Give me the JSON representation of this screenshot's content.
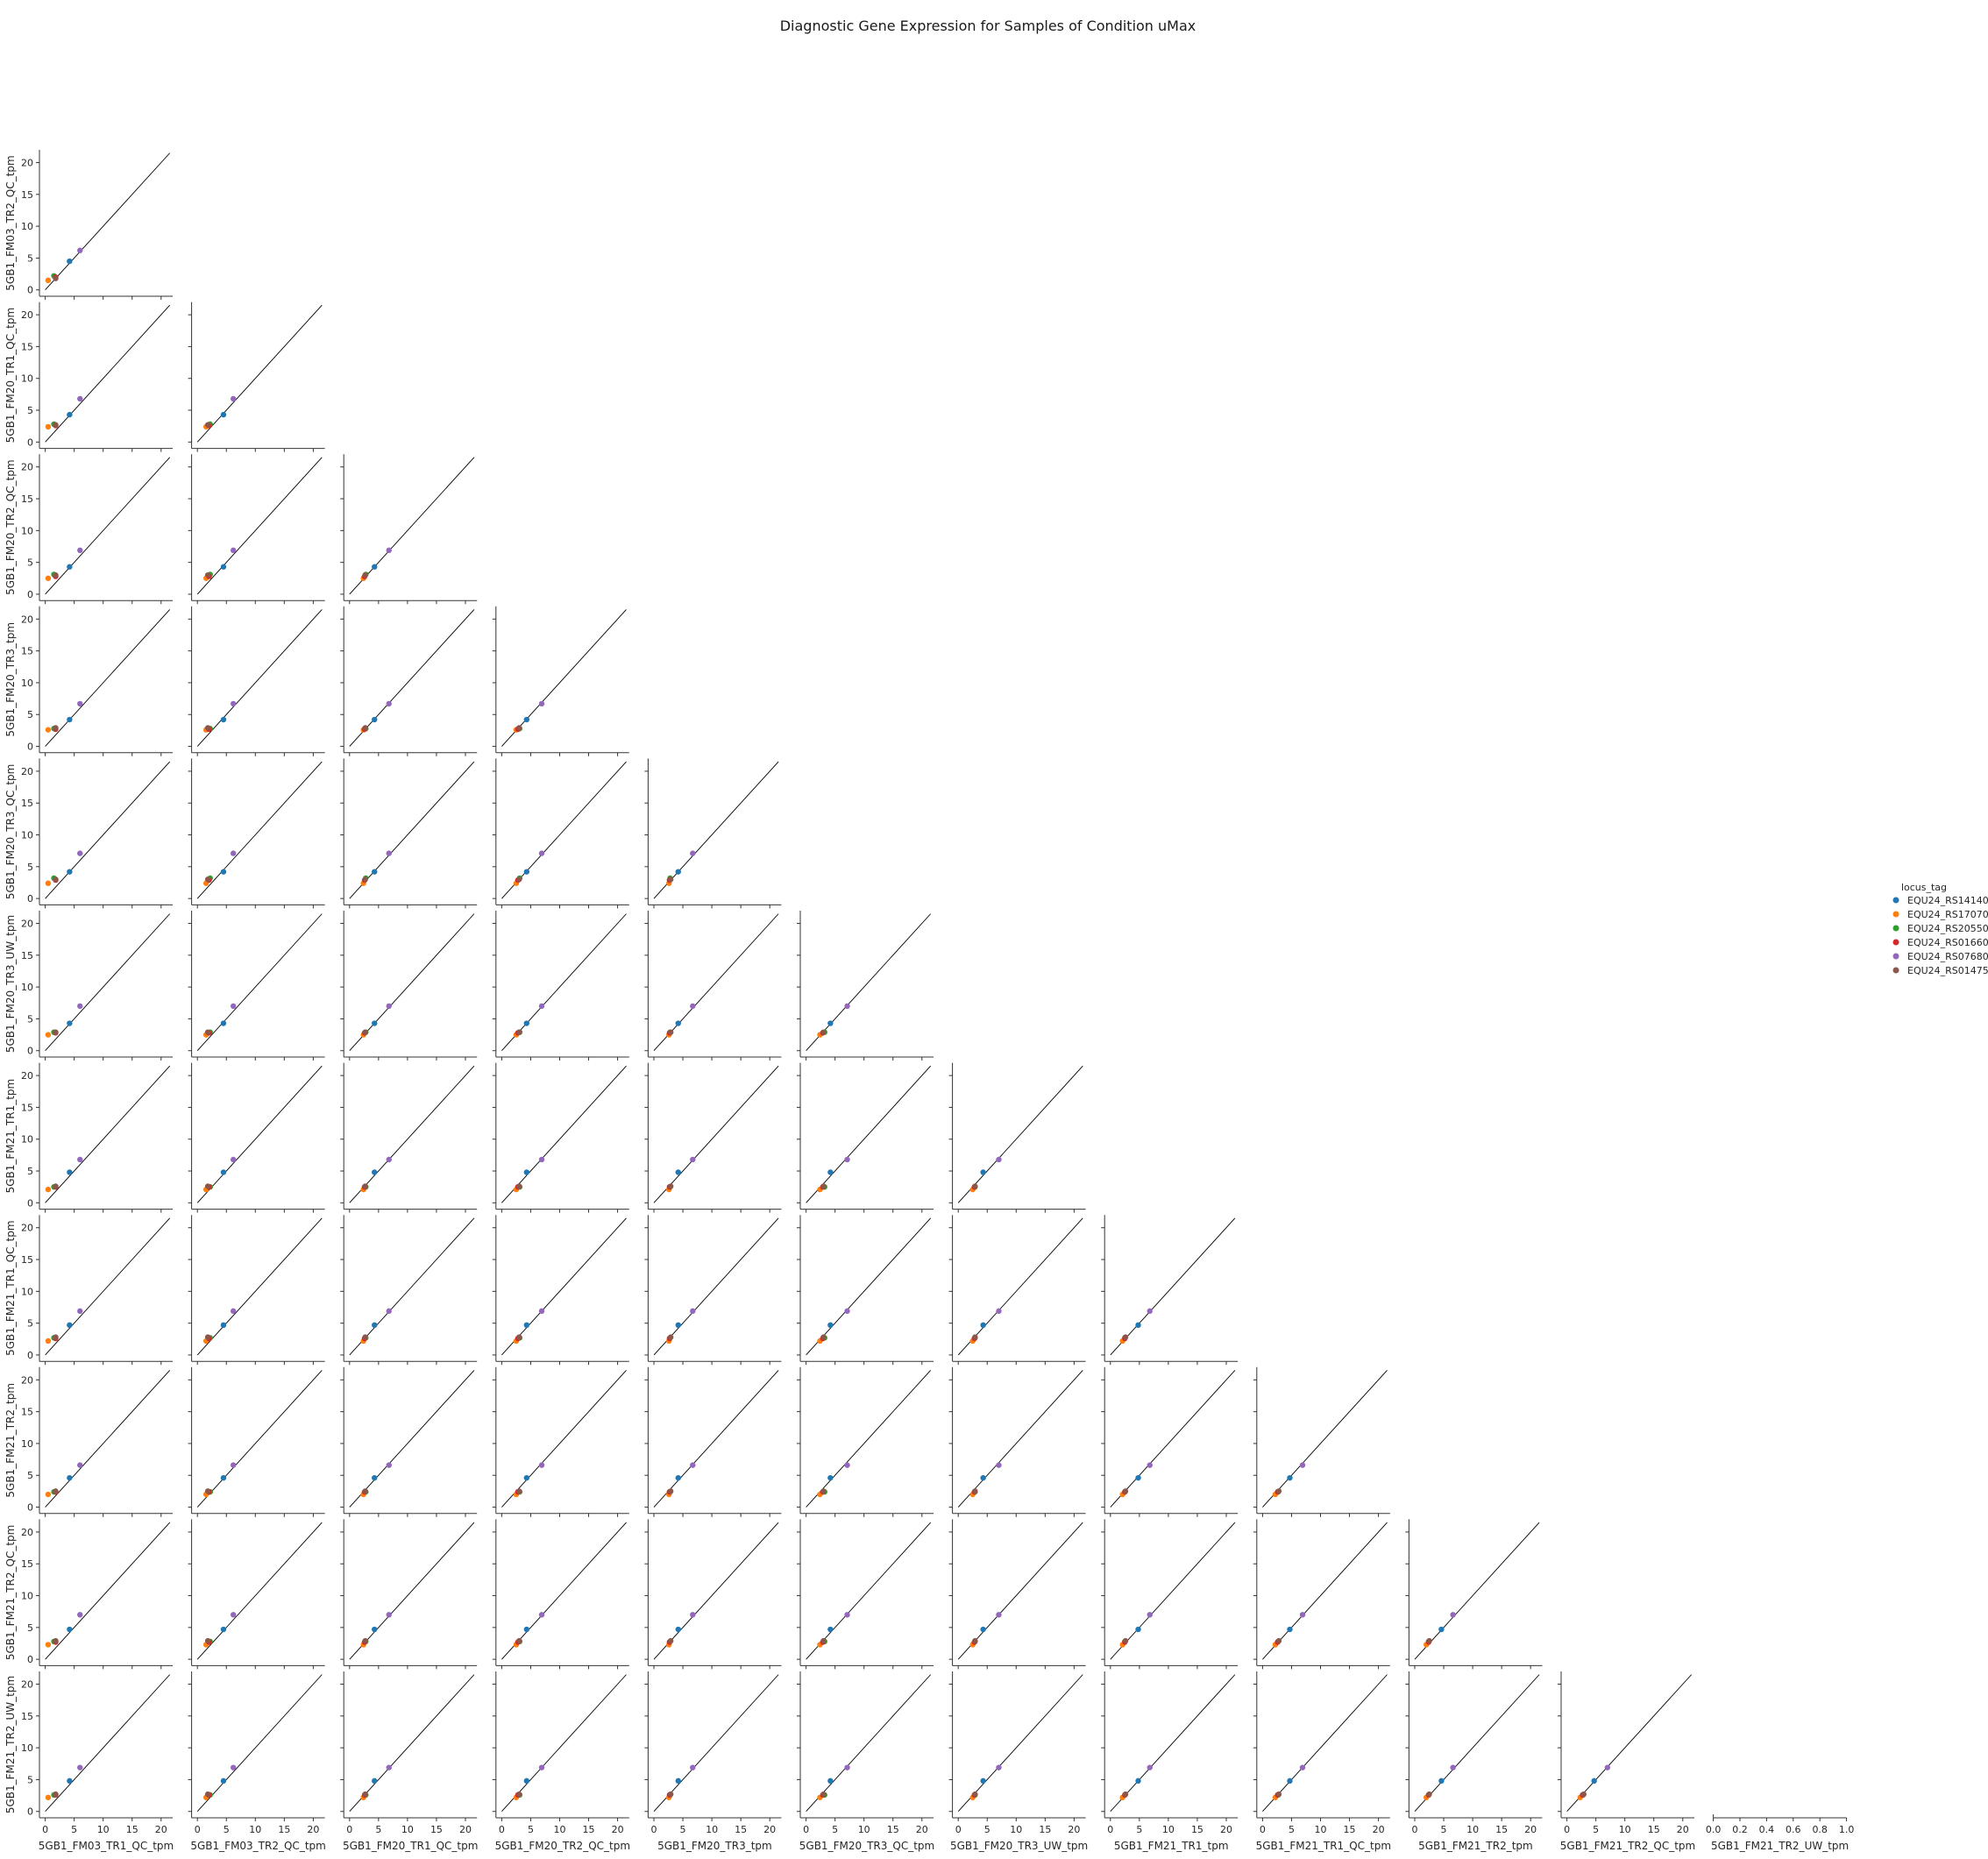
{
  "chart_data": {
    "type": "scatter",
    "title": "Diagnostic Gene Expression for Samples of Condition uMax",
    "grid": false,
    "layout": "pairplot-lower-triangle",
    "legend": {
      "title": "locus_tag",
      "placement": "right-center",
      "entries": [
        "EQU24_RS14140",
        "EQU24_RS17070",
        "EQU24_RS20550",
        "EQU24_RS01660",
        "EQU24_RS07680",
        "EQU24_RS01475"
      ]
    },
    "series_colors": [
      "#1f77b4",
      "#ff7f0e",
      "#2ca02c",
      "#d62728",
      "#9467bd",
      "#8c564b"
    ],
    "samples": [
      "5GB1_FM03_TR1_QC_tpm",
      "5GB1_FM03_TR2_QC_tpm",
      "5GB1_FM20_TR1_QC_tpm",
      "5GB1_FM20_TR2_QC_tpm",
      "5GB1_FM20_TR3_tpm",
      "5GB1_FM20_TR3_QC_tpm",
      "5GB1_FM20_TR3_UW_tpm",
      "5GB1_FM21_TR1_tpm",
      "5GB1_FM21_TR1_QC_tpm",
      "5GB1_FM21_TR2_tpm",
      "5GB1_FM21_TR2_QC_tpm",
      "5GB1_FM21_TR2_UW_tpm"
    ],
    "values": [
      [
        4.2,
        0.5,
        1.5,
        1.8,
        6.0,
        1.8
      ],
      [
        4.5,
        1.5,
        2.2,
        2.0,
        6.2,
        1.8
      ],
      [
        4.3,
        2.4,
        2.8,
        2.6,
        6.8,
        2.7
      ],
      [
        4.3,
        2.5,
        3.1,
        2.8,
        6.9,
        3.0
      ],
      [
        4.2,
        2.6,
        2.8,
        2.7,
        6.7,
        2.9
      ],
      [
        4.2,
        2.4,
        3.2,
        2.9,
        7.1,
        3.0
      ],
      [
        4.3,
        2.5,
        2.9,
        2.8,
        7.0,
        2.9
      ],
      [
        4.8,
        2.1,
        2.5,
        2.5,
        6.8,
        2.6
      ],
      [
        4.7,
        2.2,
        2.7,
        2.6,
        6.9,
        2.8
      ],
      [
        4.6,
        2.0,
        2.4,
        2.4,
        6.6,
        2.5
      ],
      [
        4.7,
        2.3,
        2.8,
        2.7,
        7.0,
        2.9
      ],
      [
        4.8,
        2.2,
        2.6,
        2.6,
        6.9,
        2.7
      ]
    ],
    "xlim": [
      -1,
      22
    ],
    "ylim": [
      -1,
      22
    ],
    "xticks": [
      0,
      5,
      10,
      15,
      20
    ],
    "yticks": [
      0,
      5,
      10,
      15,
      20
    ],
    "identity_line": true,
    "empty_panel": {
      "xlabel": "5GB1_FM21_TR2_UW_tpm",
      "xlim": [
        0,
        1
      ],
      "xticks": [
        "0.0",
        "0.2",
        "0.4",
        "0.6",
        "0.8",
        "1.0"
      ]
    }
  }
}
